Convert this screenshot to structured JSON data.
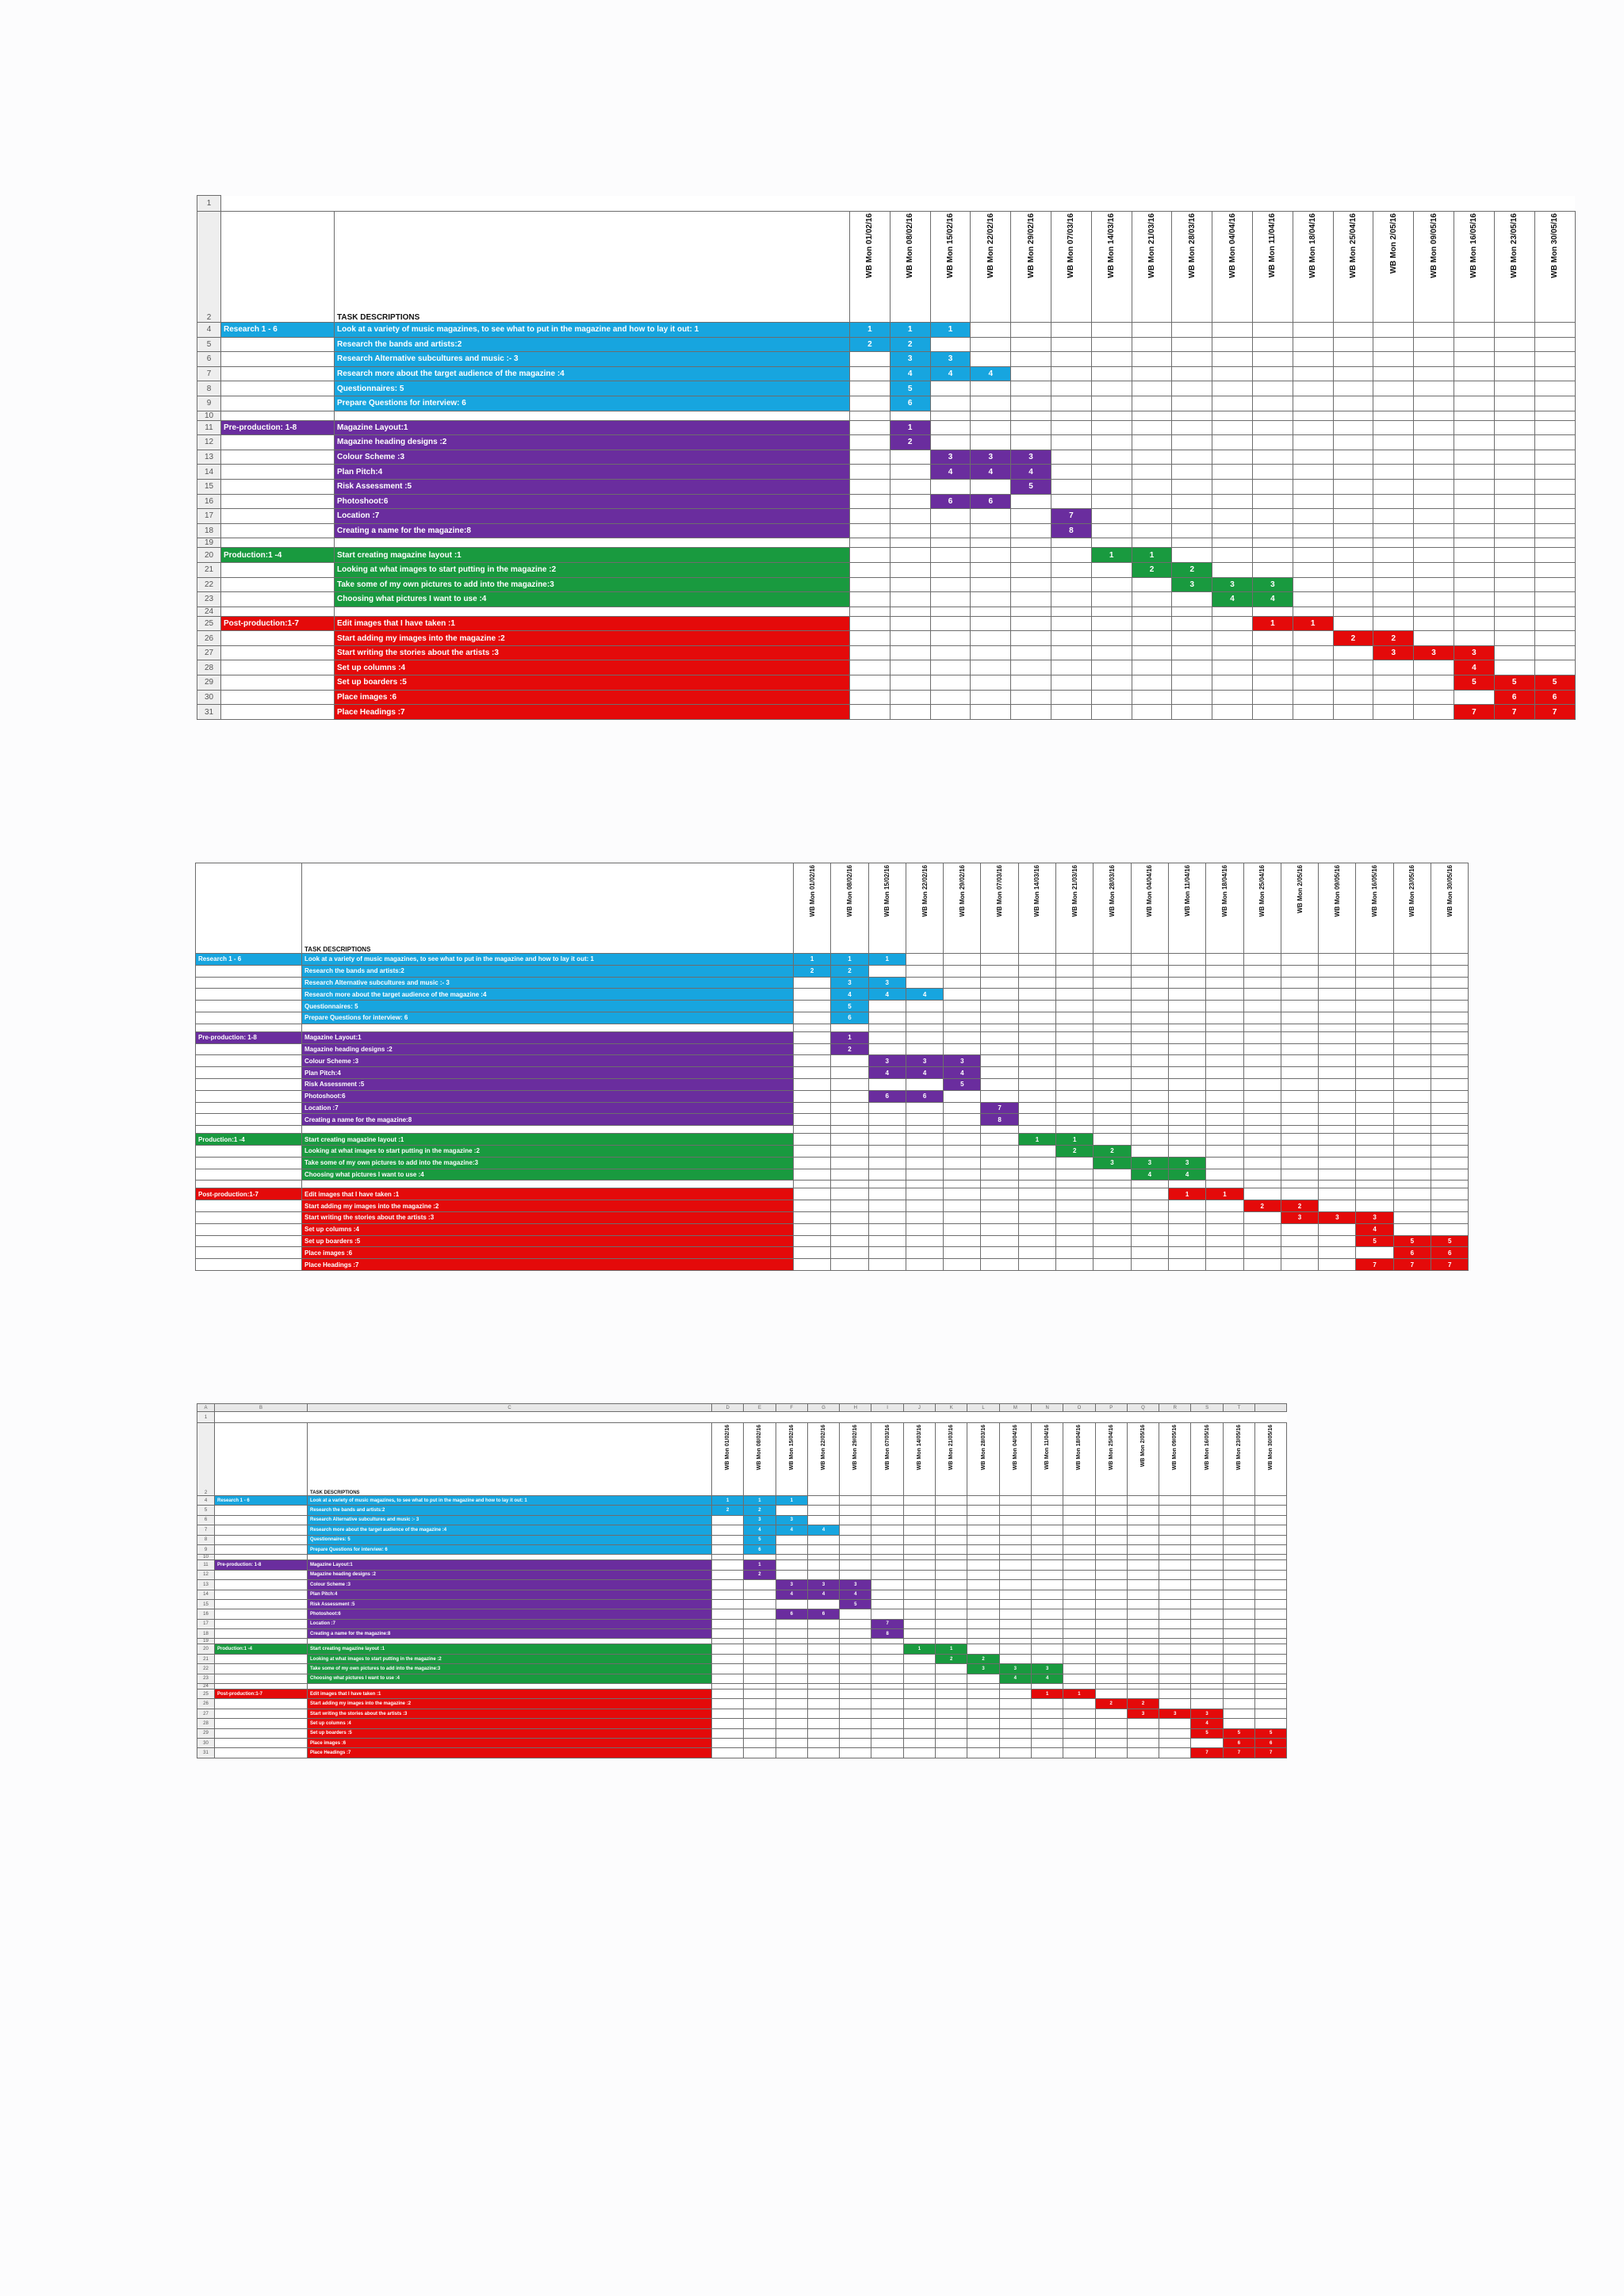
{
  "sheet": {
    "task_header": "TASK DESCRIPTIONS",
    "weeks": [
      "WB Mon 01/02/16",
      "WB Mon 08/02/16",
      "WB Mon 15/02/16",
      "WB Mon 22/02/16",
      "WB Mon 29/02/16",
      "WB Mon 07/03/16",
      "WB Mon 14/03/16",
      "WB Mon 21/03/16",
      "WB Mon 28/03/16",
      "WB Mon 04/04/16",
      "WB Mon 11/04/16",
      "WB Mon 18/04/16",
      "WB Mon 25/04/16",
      "WB Mon 2/05/16",
      "WB Mon 09/05/16",
      "WB Mon 16/05/16",
      "WB Mon 23/05/16",
      "WB Mon 30/05/16"
    ],
    "column_letters": [
      "A",
      "B",
      "C",
      "D",
      "E",
      "F",
      "G",
      "H",
      "I",
      "J",
      "K",
      "L",
      "M",
      "N",
      "O",
      "P",
      "Q",
      "R",
      "S",
      "T"
    ],
    "sections": [
      {
        "label": "Research 1 - 6",
        "color": "research",
        "tasks": [
          {
            "row": "4",
            "text": "Look at a variety of  music magazines, to see what to put in the magazine and how to lay it out: 1",
            "cells": {
              "0": "1",
              "1": "1",
              "2": "1"
            }
          },
          {
            "row": "5",
            "text": "Research the bands and artists:2",
            "cells": {
              "0": "2",
              "1": "2"
            }
          },
          {
            "row": "6",
            "text": "Research Alternative subcultures and music :- 3",
            "cells": {
              "1": "3",
              "2": "3"
            }
          },
          {
            "row": "7",
            "text": "Research more about the target audience of the magazine :4",
            "cells": {
              "1": "4",
              "2": "4",
              "3": "4"
            }
          },
          {
            "row": "8",
            "text": "Questionnaires: 5",
            "cells": {
              "1": "5"
            }
          },
          {
            "row": "9",
            "text": "Prepare Questions for interview: 6",
            "cells": {
              "1": "6"
            }
          }
        ],
        "gap_row": "10"
      },
      {
        "label": "Pre-production: 1-8",
        "color": "pre",
        "tasks": [
          {
            "row": "11",
            "text": "Magazine Layout:1",
            "cells": {
              "1": "1"
            }
          },
          {
            "row": "12",
            "text": "Magazine heading designs :2",
            "cells": {
              "1": "2"
            }
          },
          {
            "row": "13",
            "text": "Colour Scheme :3",
            "cells": {
              "2": "3",
              "3": "3",
              "4": "3"
            }
          },
          {
            "row": "14",
            "text": "Plan Pitch:4",
            "cells": {
              "2": "4",
              "3": "4",
              "4": "4"
            }
          },
          {
            "row": "15",
            "text": "Risk Assessment :5",
            "cells": {
              "4": "5"
            }
          },
          {
            "row": "16",
            "text": "Photoshoot:6",
            "cells": {
              "2": "6",
              "3": "6"
            }
          },
          {
            "row": "17",
            "text": "Location :7",
            "cells": {
              "5": "7"
            }
          },
          {
            "row": "18",
            "text": "Creating a name for the magazine:8",
            "cells": {
              "5": "8"
            }
          }
        ],
        "gap_row": "19"
      },
      {
        "label": "Production:1 -4",
        "color": "prod",
        "tasks": [
          {
            "row": "20",
            "text": "Start creating magazine layout :1",
            "cells": {
              "6": "1",
              "7": "1"
            }
          },
          {
            "row": "21",
            "text": "Looking at what images to start putting in the magazine :2",
            "cells": {
              "7": "2",
              "8": "2"
            }
          },
          {
            "row": "22",
            "text": "Take some of my own pictures to add into the magazine:3",
            "cells": {
              "8": "3",
              "9": "3",
              "10": "3"
            }
          },
          {
            "row": "23",
            "text": "Choosing what pictures I want to use :4",
            "cells": {
              "9": "4",
              "10": "4"
            }
          }
        ],
        "gap_row": "24"
      },
      {
        "label": "Post-production:1-7",
        "color": "post",
        "tasks": [
          {
            "row": "25",
            "text": "Edit images that I have taken :1",
            "cells": {
              "10": "1",
              "11": "1"
            }
          },
          {
            "row": "26",
            "text": "Start adding my images into the magazine :2",
            "cells": {
              "12": "2",
              "13": "2"
            }
          },
          {
            "row": "27",
            "text": "Start writing the stories about the artists :3",
            "cells": {
              "13": "3",
              "14": "3",
              "15": "3"
            }
          },
          {
            "row": "28",
            "text": "Set up columns :4",
            "cells": {
              "15": "4"
            }
          },
          {
            "row": "29",
            "text": "Set up boarders :5",
            "cells": {
              "15": "5",
              "16": "5",
              "17": "5"
            }
          },
          {
            "row": "30",
            "text": "Place images :6",
            "cells": {
              "15": "",
              "16": "6",
              "17": "6"
            }
          },
          {
            "row": "31",
            "text": "Place Headings :7",
            "cells": {
              "15": "7",
              "16": "7",
              "17": "7"
            }
          }
        ]
      }
    ],
    "header_row_numbers": [
      "1",
      "2"
    ],
    "sheet3_header_row_numbers": [
      "1",
      "2"
    ]
  }
}
